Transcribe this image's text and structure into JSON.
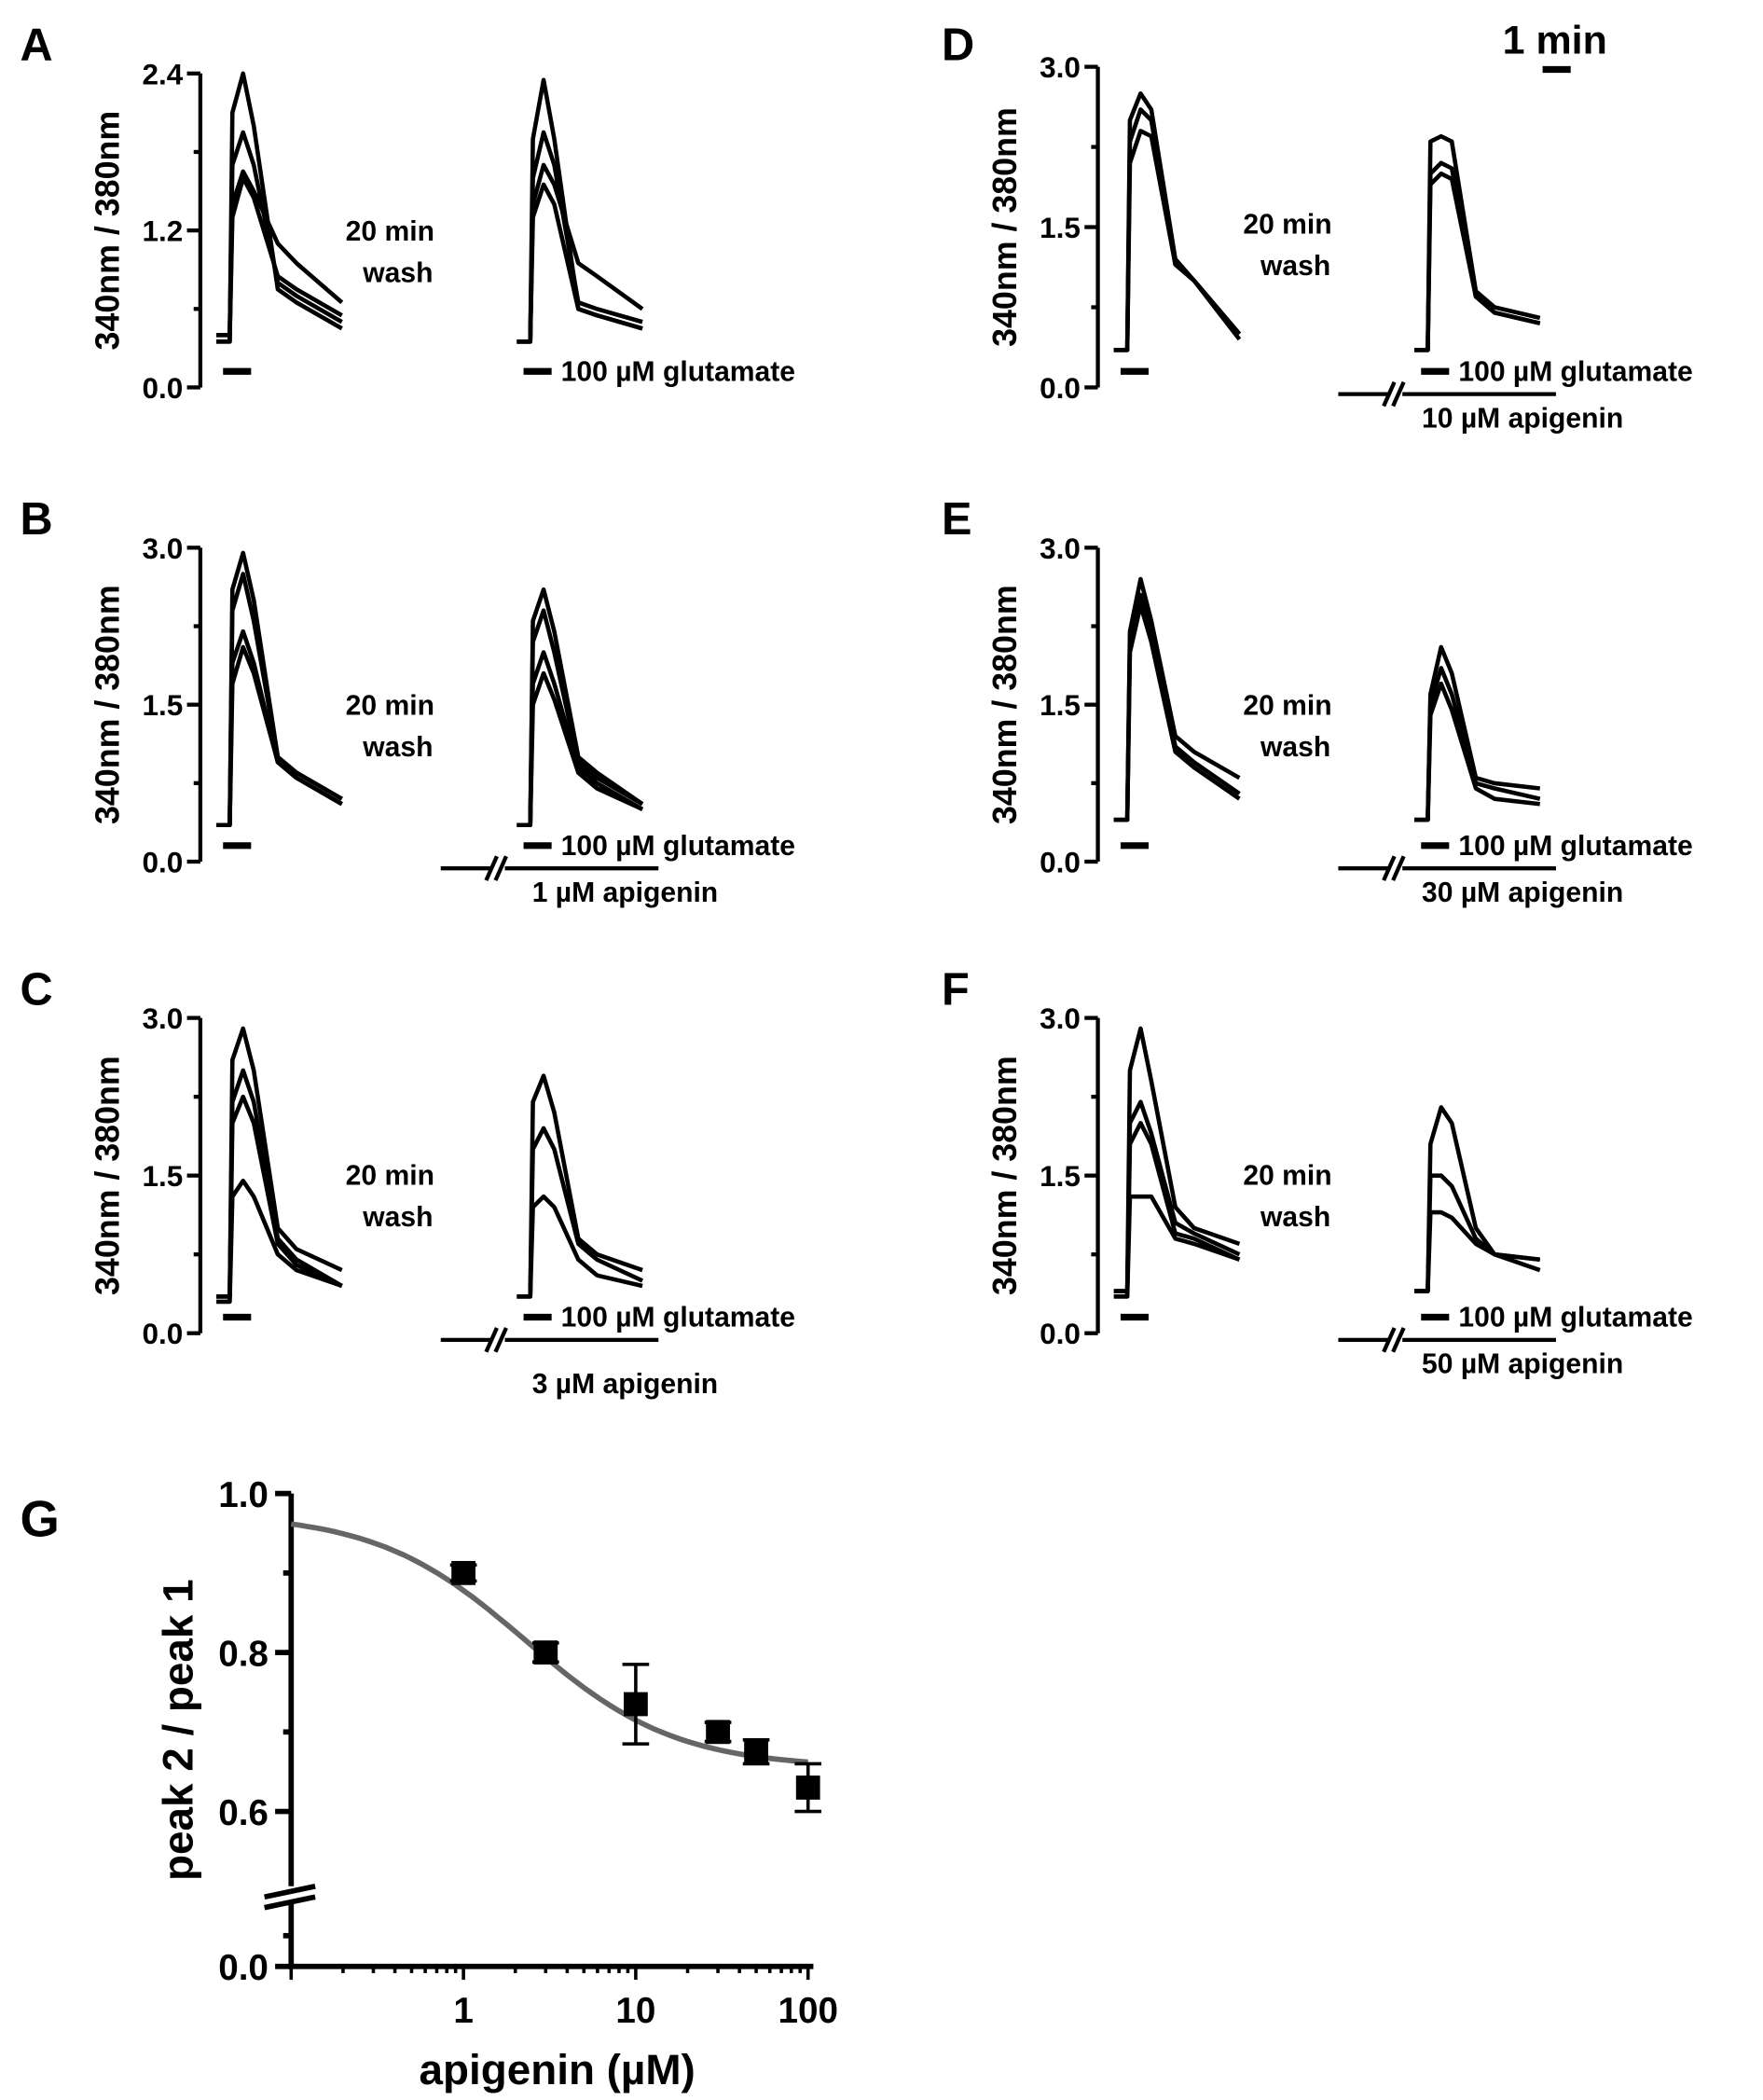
{
  "scale_bar": {
    "label": "1 min"
  },
  "chart_data": [
    {
      "type": "line",
      "panel": "A",
      "ylabel": "340nm / 380nm",
      "ylim": [
        0,
        2.4
      ],
      "yticks": [
        "0.0",
        "1.2",
        "2.4"
      ],
      "time_min": [
        0,
        0.5,
        0.6,
        1.0,
        1.4,
        2.3,
        3.0,
        4.7
      ],
      "wash_text": [
        "20 min",
        "wash"
      ],
      "glutamate_label": "100 µM glutamate",
      "apigenin_label": "",
      "traces_before": [
        [
          0.35,
          0.35,
          2.1,
          2.4,
          2.0,
          0.75,
          0.65,
          0.45
        ],
        [
          0.4,
          0.4,
          1.7,
          1.95,
          1.7,
          0.8,
          0.7,
          0.5
        ],
        [
          0.35,
          0.35,
          1.4,
          1.65,
          1.5,
          1.1,
          0.95,
          0.65
        ],
        [
          0.4,
          0.4,
          1.3,
          1.6,
          1.45,
          0.85,
          0.75,
          0.55
        ]
      ],
      "traces_after": [
        [
          0.35,
          0.35,
          1.9,
          2.35,
          1.9,
          0.6,
          0.55,
          0.45
        ],
        [
          0.35,
          0.35,
          1.6,
          1.95,
          1.7,
          0.65,
          0.6,
          0.5
        ],
        [
          0.35,
          0.35,
          1.4,
          1.7,
          1.55,
          0.95,
          0.85,
          0.6
        ],
        [
          0.35,
          0.35,
          1.3,
          1.55,
          1.4,
          0.6,
          0.55,
          0.45
        ]
      ]
    },
    {
      "type": "line",
      "panel": "B",
      "ylabel": "340nm / 380nm",
      "ylim": [
        0,
        3.0
      ],
      "yticks": [
        "0.0",
        "1.5",
        "3.0"
      ],
      "time_min": [
        0,
        0.5,
        0.6,
        1.0,
        1.4,
        2.3,
        3.0,
        4.7
      ],
      "wash_text": [
        "20 min",
        "wash"
      ],
      "glutamate_label": "100 µM glutamate",
      "apigenin_label": "1 µM apigenin",
      "traces_before": [
        [
          0.35,
          0.35,
          2.6,
          2.95,
          2.5,
          1.0,
          0.85,
          0.6
        ],
        [
          0.35,
          0.35,
          2.4,
          2.75,
          2.3,
          1.0,
          0.85,
          0.6
        ],
        [
          0.35,
          0.35,
          1.9,
          2.2,
          1.9,
          0.95,
          0.8,
          0.55
        ],
        [
          0.35,
          0.35,
          1.7,
          2.05,
          1.8,
          0.95,
          0.8,
          0.55
        ]
      ],
      "traces_after": [
        [
          0.35,
          0.35,
          2.3,
          2.6,
          2.2,
          1.0,
          0.85,
          0.55
        ],
        [
          0.35,
          0.35,
          2.1,
          2.4,
          2.0,
          0.95,
          0.8,
          0.55
        ],
        [
          0.35,
          0.35,
          1.7,
          2.0,
          1.7,
          0.9,
          0.75,
          0.5
        ],
        [
          0.35,
          0.35,
          1.5,
          1.8,
          1.55,
          0.85,
          0.7,
          0.5
        ]
      ]
    },
    {
      "type": "line",
      "panel": "C",
      "ylabel": "340nm / 380nm",
      "ylim": [
        0,
        3.0
      ],
      "yticks": [
        "0.0",
        "1.5",
        "3.0"
      ],
      "time_min": [
        0,
        0.5,
        0.6,
        1.0,
        1.4,
        2.3,
        3.0,
        4.7
      ],
      "wash_text": [
        "20 min",
        "wash"
      ],
      "glutamate_label": "100 µM glutamate",
      "apigenin_label": "3 µM apigenin",
      "traces_before": [
        [
          0.35,
          0.35,
          2.6,
          2.9,
          2.5,
          1.0,
          0.8,
          0.6
        ],
        [
          0.35,
          0.35,
          2.2,
          2.5,
          2.2,
          0.9,
          0.7,
          0.45
        ],
        [
          0.35,
          0.35,
          2.0,
          2.25,
          2.0,
          0.85,
          0.65,
          0.45
        ],
        [
          0.3,
          0.3,
          1.3,
          1.45,
          1.3,
          0.75,
          0.6,
          0.45
        ]
      ],
      "traces_after": [
        [
          0.35,
          0.35,
          2.2,
          2.45,
          2.1,
          0.9,
          0.75,
          0.6
        ],
        [
          0.35,
          0.35,
          1.75,
          1.95,
          1.75,
          0.85,
          0.7,
          0.5
        ],
        [
          0.35,
          0.35,
          1.2,
          1.3,
          1.2,
          0.7,
          0.55,
          0.45
        ]
      ]
    },
    {
      "type": "line",
      "panel": "D",
      "ylabel": "340nm / 380nm",
      "ylim": [
        0,
        3.0
      ],
      "yticks": [
        "0.0",
        "1.5",
        "3.0"
      ],
      "time_min": [
        0,
        0.5,
        0.6,
        1.0,
        1.4,
        2.3,
        3.0,
        4.7
      ],
      "wash_text": [
        "20 min",
        "wash"
      ],
      "glutamate_label": "100 µM glutamate",
      "apigenin_label": "10 µM apigenin",
      "traces_before": [
        [
          0.35,
          0.35,
          2.5,
          2.75,
          2.6,
          1.2,
          1.0,
          0.5
        ],
        [
          0.35,
          0.35,
          2.3,
          2.6,
          2.5,
          1.15,
          1.0,
          0.5
        ],
        [
          0.35,
          0.35,
          2.1,
          2.4,
          2.35,
          1.15,
          1.0,
          0.45
        ]
      ],
      "traces_after": [
        [
          0.35,
          0.35,
          2.3,
          2.35,
          2.3,
          0.9,
          0.75,
          0.65
        ],
        [
          0.35,
          0.35,
          2.0,
          2.1,
          2.05,
          0.85,
          0.7,
          0.6
        ],
        [
          0.35,
          0.35,
          1.9,
          2.0,
          1.95,
          0.85,
          0.7,
          0.6
        ]
      ]
    },
    {
      "type": "line",
      "panel": "E",
      "ylabel": "340nm / 380nm",
      "ylim": [
        0,
        3.0
      ],
      "yticks": [
        "0.0",
        "1.5",
        "3.0"
      ],
      "time_min": [
        0,
        0.5,
        0.6,
        1.0,
        1.4,
        2.3,
        3.0,
        4.7
      ],
      "wash_text": [
        "20 min",
        "wash"
      ],
      "glutamate_label": "100 µM glutamate",
      "apigenin_label": "30 µM apigenin",
      "traces_before": [
        [
          0.4,
          0.4,
          2.2,
          2.7,
          2.3,
          1.2,
          1.05,
          0.8
        ],
        [
          0.4,
          0.4,
          2.1,
          2.55,
          2.2,
          1.1,
          0.95,
          0.65
        ],
        [
          0.4,
          0.4,
          2.0,
          2.45,
          2.1,
          1.05,
          0.9,
          0.6
        ]
      ],
      "traces_after": [
        [
          0.4,
          0.4,
          1.6,
          2.05,
          1.8,
          0.8,
          0.75,
          0.7
        ],
        [
          0.4,
          0.4,
          1.5,
          1.85,
          1.6,
          0.75,
          0.7,
          0.6
        ],
        [
          0.4,
          0.4,
          1.4,
          1.7,
          1.45,
          0.7,
          0.6,
          0.55
        ]
      ]
    },
    {
      "type": "line",
      "panel": "F",
      "ylabel": "340nm / 380nm",
      "ylim": [
        0,
        3.0
      ],
      "yticks": [
        "0.0",
        "1.5",
        "3.0"
      ],
      "time_min": [
        0,
        0.5,
        0.6,
        1.0,
        1.4,
        2.3,
        3.0,
        4.7
      ],
      "wash_text": [
        "20 min",
        "wash"
      ],
      "glutamate_label": "100 µM glutamate",
      "apigenin_label": "50 µM apigenin",
      "traces_before": [
        [
          0.4,
          0.4,
          2.5,
          2.9,
          2.4,
          1.2,
          1.0,
          0.85
        ],
        [
          0.35,
          0.35,
          2.0,
          2.2,
          1.9,
          1.05,
          0.95,
          0.75
        ],
        [
          0.4,
          0.4,
          1.8,
          2.0,
          1.8,
          0.95,
          0.9,
          0.7
        ],
        [
          0.35,
          0.35,
          1.3,
          1.3,
          1.3,
          0.9,
          0.85,
          0.7
        ]
      ],
      "traces_after": [
        [
          0.4,
          0.4,
          1.8,
          2.15,
          2.0,
          1.0,
          0.75,
          0.6
        ],
        [
          0.4,
          0.4,
          1.5,
          1.5,
          1.4,
          0.9,
          0.75,
          0.7
        ],
        [
          0.4,
          0.4,
          1.15,
          1.15,
          1.1,
          0.85,
          0.75,
          0.7
        ]
      ]
    },
    {
      "type": "scatter",
      "panel": "G",
      "xlabel": "apigenin (µM)",
      "ylabel": "peak 2 / peak 1",
      "xscale": "log",
      "xlim": [
        0.1,
        100
      ],
      "xticks": [
        "1",
        "10",
        "100"
      ],
      "ylim": [
        0,
        1.0
      ],
      "yaxis_break": [
        0.0,
        0.5
      ],
      "yticks": [
        "0.0",
        "0.6",
        "0.8",
        "1.0"
      ],
      "x": [
        1,
        3,
        10,
        30,
        50,
        100
      ],
      "y": [
        0.9,
        0.8,
        0.735,
        0.7,
        0.675,
        0.63
      ],
      "yerr": [
        0.01,
        0.012,
        0.05,
        0.012,
        0.015,
        0.03
      ],
      "fit": {
        "type": "sigmoidal dose-response",
        "top": 0.975,
        "bottom": 0.655,
        "ic50": 2.3,
        "hill": 1.0,
        "color": "#666666"
      }
    }
  ]
}
